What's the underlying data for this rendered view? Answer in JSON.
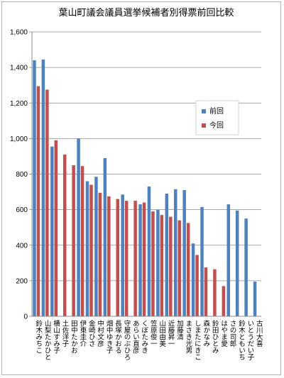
{
  "chart_data": {
    "type": "bar",
    "title": "葉山町議会議員選挙候補者別得票前回比較",
    "xlabel": "",
    "ylabel": "",
    "ylim": [
      0,
      1600
    ],
    "yticks": [
      "0",
      "200",
      "400",
      "600",
      "800",
      "1,000",
      "1,200",
      "1,400",
      "1,600"
    ],
    "grid": true,
    "legend_position": "right",
    "categories": [
      "鈴木みちこ",
      "山梨たかひと",
      "横山すみ子",
      "土佐洋子",
      "田中たかお",
      "伊東圭介",
      "金崎ひさ",
      "中村文彦",
      "畑中ゆき子",
      "長塚かおる",
      "守屋のぶひろ",
      "あらい直彦",
      "くぼたみき",
      "笠原俊一",
      "山田由美",
      "近藤昇一",
      "加藤清",
      "まさき光男",
      "しまたにきこ",
      "森かなみ",
      "鈴田ひとみ",
      "はやま愛",
      "さの司郎",
      "鈴木ともいち",
      "いとうだい子",
      "古川大喜"
    ],
    "series": [
      {
        "name": "前回",
        "color": "#4f81bd",
        "values": [
          1440,
          1445,
          955,
          null,
          null,
          1000,
          760,
          785,
          890,
          null,
          685,
          null,
          630,
          730,
          600,
          690,
          715,
          710,
          410,
          615,
          null,
          null,
          630,
          595,
          550,
          195
        ]
      },
      {
        "name": "今回",
        "color": "#c0504d",
        "values": [
          1295,
          1275,
          990,
          910,
          850,
          845,
          740,
          695,
          675,
          660,
          650,
          650,
          640,
          590,
          570,
          560,
          540,
          525,
          345,
          275,
          265,
          170,
          null,
          null,
          null,
          null
        ]
      }
    ]
  }
}
